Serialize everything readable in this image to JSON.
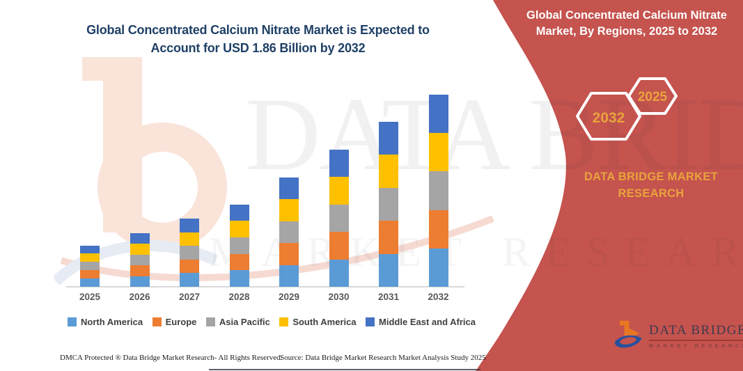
{
  "header": {
    "left_title": "Global Concentrated Calcium Nitrate Market is Expected to Account for USD 1.86 Billion by 2032",
    "panel_title": "Global Concentrated Calcium Nitrate Market, By Regions, 2025 to 2032"
  },
  "panel": {
    "hexagons": [
      "2032",
      "2025"
    ],
    "brand_caption": "DATA BRIDGE MARKET RESEARCH",
    "accent_color": "#c5534e",
    "gold_color": "#e8a33d"
  },
  "watermark": {
    "line1": "DATA BRIDGE",
    "line2": "MARKET RESEARCH"
  },
  "chart_data": {
    "type": "bar",
    "stacked": true,
    "title": "Global Concentrated Calcium Nitrate Market, By Regions, 2025 to 2032",
    "unit": "USD Billion",
    "categories": [
      "2025",
      "2026",
      "2027",
      "2028",
      "2029",
      "2030",
      "2031",
      "2032"
    ],
    "series": [
      {
        "name": "North America",
        "color": "#5B9BD5",
        "values": [
          0.08,
          0.104,
          0.132,
          0.16,
          0.212,
          0.266,
          0.32,
          0.372
        ]
      },
      {
        "name": "Europe",
        "color": "#ED7D31",
        "values": [
          0.08,
          0.104,
          0.132,
          0.16,
          0.212,
          0.266,
          0.32,
          0.372
        ]
      },
      {
        "name": "Asia Pacific",
        "color": "#A5A5A5",
        "values": [
          0.08,
          0.104,
          0.132,
          0.16,
          0.212,
          0.266,
          0.32,
          0.372
        ]
      },
      {
        "name": "South America",
        "color": "#FFC000",
        "values": [
          0.08,
          0.104,
          0.132,
          0.16,
          0.212,
          0.266,
          0.32,
          0.372
        ]
      },
      {
        "name": "Middle East and Africa",
        "color": "#4472C4",
        "values": [
          0.08,
          0.104,
          0.132,
          0.16,
          0.212,
          0.266,
          0.32,
          0.372
        ]
      }
    ],
    "totals": [
      0.4,
      0.52,
      0.66,
      0.8,
      1.06,
      1.33,
      1.6,
      1.86
    ],
    "highlight_value": "USD 1.86 Billion by 2032",
    "ylim": [
      0,
      2.0
    ],
    "grid": false,
    "legend_position": "bottom",
    "xlabel": "",
    "ylabel": ""
  },
  "footer": {
    "dmca": "DMCA Protected ® Data Bridge Market Research-  All Rights Reserved.",
    "source": "Source: Data Bridge Market Research  Market Analysis Study 2025"
  },
  "logo": {
    "title": "DATA BRIDGE",
    "subtitle": "MARKET RESEARCH"
  }
}
